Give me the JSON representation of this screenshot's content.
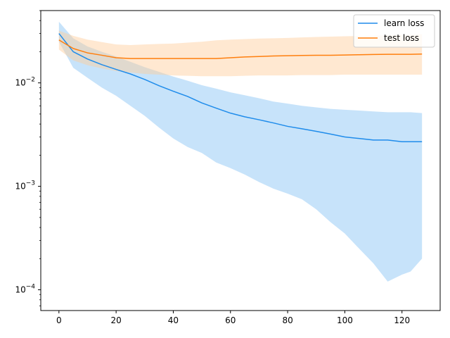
{
  "chart_data": {
    "type": "line",
    "title": "",
    "xlabel": "",
    "ylabel": "",
    "xlim": [
      -6.35,
      133.35
    ],
    "ylim": [
      6.3e-05,
      0.05
    ],
    "yscale": "log",
    "grid": false,
    "legend_position": "top-right",
    "x_ticks": [
      0,
      20,
      40,
      60,
      80,
      100,
      120
    ],
    "y_ticks": [
      {
        "value": 0.0001,
        "base": "10",
        "exp": "−4"
      },
      {
        "value": 0.001,
        "base": "10",
        "exp": "−3"
      },
      {
        "value": 0.01,
        "base": "10",
        "exp": "−2"
      }
    ],
    "series": [
      {
        "name": "learn loss",
        "color": "#1f8ceb",
        "band_color": "#90c8f5",
        "x": [
          0,
          5,
          10,
          15,
          20,
          25,
          30,
          35,
          40,
          45,
          50,
          55,
          60,
          65,
          70,
          75,
          80,
          85,
          90,
          95,
          100,
          105,
          110,
          115,
          120,
          123,
          127
        ],
        "mean": [
          0.03,
          0.02,
          0.017,
          0.015,
          0.0135,
          0.0122,
          0.0108,
          0.0094,
          0.0083,
          0.0074,
          0.0064,
          0.0057,
          0.0051,
          0.0047,
          0.0044,
          0.0041,
          0.0038,
          0.0036,
          0.0034,
          0.0032,
          0.003,
          0.0029,
          0.0028,
          0.0028,
          0.0027,
          0.0027,
          0.0027
        ],
        "upper": [
          0.039,
          0.027,
          0.0225,
          0.02,
          0.018,
          0.016,
          0.0142,
          0.0128,
          0.0115,
          0.0105,
          0.0095,
          0.0088,
          0.0081,
          0.0076,
          0.0071,
          0.0066,
          0.0063,
          0.006,
          0.0058,
          0.0056,
          0.0055,
          0.0054,
          0.0053,
          0.0052,
          0.0052,
          0.0052,
          0.0051
        ],
        "lower": [
          0.025,
          0.014,
          0.0112,
          0.009,
          0.0075,
          0.006,
          0.0048,
          0.0037,
          0.0029,
          0.0024,
          0.0021,
          0.0017,
          0.0015,
          0.0013,
          0.0011,
          0.00095,
          0.00085,
          0.00075,
          0.0006,
          0.00045,
          0.00035,
          0.00025,
          0.00018,
          0.00012,
          0.00014,
          0.00015,
          0.0002
        ]
      },
      {
        "name": "test loss",
        "color": "#ff7f0e",
        "band_color": "#ffcc99",
        "x": [
          0,
          5,
          10,
          15,
          20,
          25,
          30,
          35,
          40,
          45,
          50,
          55,
          60,
          65,
          70,
          75,
          80,
          85,
          90,
          95,
          100,
          105,
          110,
          115,
          120,
          123,
          127
        ],
        "mean": [
          0.026,
          0.0215,
          0.0195,
          0.0185,
          0.0175,
          0.0172,
          0.0172,
          0.0172,
          0.0172,
          0.0172,
          0.0172,
          0.0172,
          0.0175,
          0.0178,
          0.018,
          0.0182,
          0.0183,
          0.0184,
          0.0185,
          0.0185,
          0.0186,
          0.0187,
          0.0188,
          0.0189,
          0.0189,
          0.0189,
          0.019
        ],
        "upper": [
          0.032,
          0.0285,
          0.0262,
          0.0248,
          0.0235,
          0.0232,
          0.0235,
          0.0238,
          0.024,
          0.0245,
          0.025,
          0.0258,
          0.0262,
          0.0265,
          0.0268,
          0.027,
          0.0272,
          0.0275,
          0.0278,
          0.028,
          0.0282,
          0.0284,
          0.0286,
          0.0288,
          0.029,
          0.0292,
          0.0295
        ],
        "lower": [
          0.021,
          0.0165,
          0.0148,
          0.0138,
          0.013,
          0.0126,
          0.0122,
          0.012,
          0.0118,
          0.0117,
          0.0116,
          0.0116,
          0.0116,
          0.0117,
          0.0118,
          0.0118,
          0.0118,
          0.0119,
          0.0119,
          0.0119,
          0.012,
          0.012,
          0.012,
          0.012,
          0.012,
          0.012,
          0.012
        ]
      }
    ]
  }
}
